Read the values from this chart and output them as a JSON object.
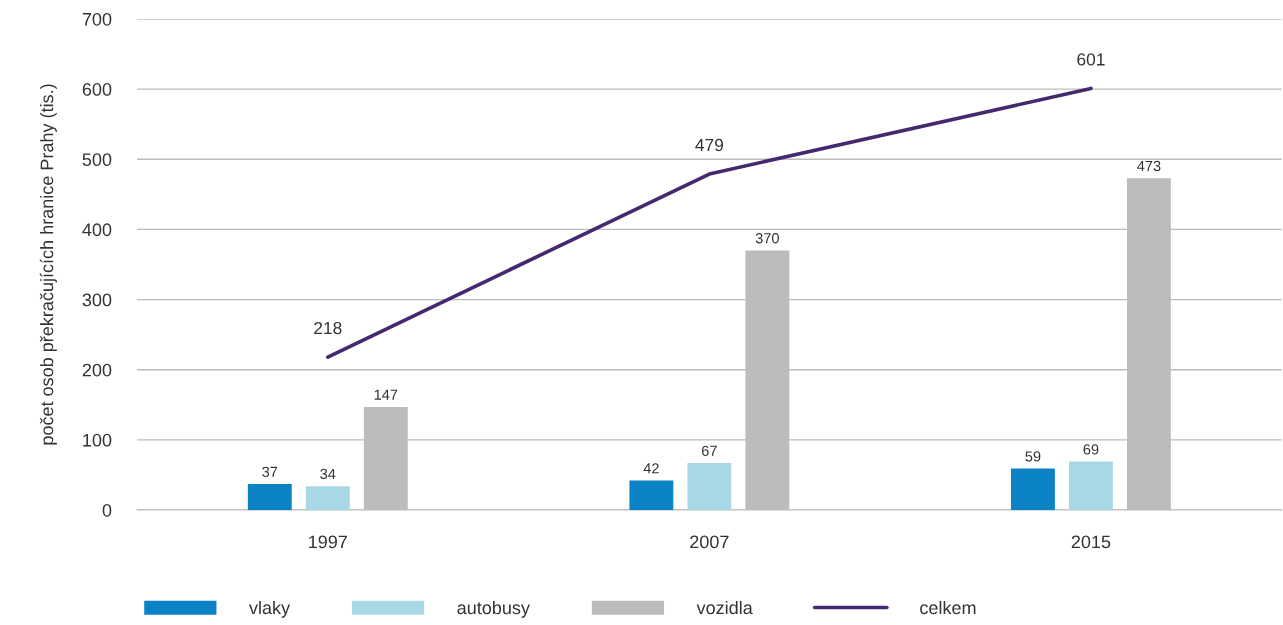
{
  "chart_data": {
    "type": "bar",
    "ylabel": "počet osob překračujících hranice Prahy (tis.)",
    "categories": [
      "1997",
      "2007",
      "2015"
    ],
    "series": [
      {
        "name": "vlaky",
        "color": "#0a82c4",
        "values": [
          37,
          42,
          59
        ]
      },
      {
        "name": "autobusy",
        "color": "#a8d8e6",
        "values": [
          34,
          67,
          69
        ]
      },
      {
        "name": "vozidla",
        "color": "#bcbcbb",
        "values": [
          147,
          370,
          473
        ]
      },
      {
        "name": "celkem",
        "type": "line",
        "color": "#45296e",
        "values": [
          218,
          479,
          601
        ]
      }
    ],
    "ylim": [
      0,
      700
    ],
    "yticks": [
      0,
      100,
      200,
      300,
      400,
      500,
      600,
      700
    ],
    "grid": "y",
    "legend": "bottom",
    "data_labels": true
  }
}
